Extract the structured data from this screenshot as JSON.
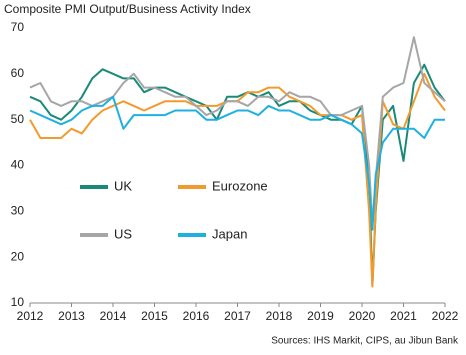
{
  "chart_data": {
    "type": "line",
    "title": "Composite PMI Output/Business Activity Index",
    "source": "Sources: IHS Markit, CIPS, au Jibun Bank",
    "x": [
      2012.0,
      2012.25,
      2012.5,
      2012.75,
      2013.0,
      2013.25,
      2013.5,
      2013.75,
      2014.0,
      2014.25,
      2014.5,
      2014.75,
      2015.0,
      2015.25,
      2015.5,
      2015.75,
      2016.0,
      2016.25,
      2016.5,
      2016.75,
      2017.0,
      2017.25,
      2017.5,
      2017.75,
      2018.0,
      2018.25,
      2018.5,
      2018.75,
      2019.0,
      2019.25,
      2019.5,
      2019.75,
      2020.0,
      2020.17,
      2020.25,
      2020.33,
      2020.5,
      2020.75,
      2021.0,
      2021.25,
      2021.5,
      2021.75,
      2022.0
    ],
    "series": [
      {
        "name": "UK",
        "color": "#1a8a78",
        "values": [
          55,
          54,
          51,
          50,
          52,
          55,
          59,
          61,
          60,
          59,
          59,
          56,
          57,
          57,
          56,
          55,
          54,
          53,
          50,
          55,
          55,
          56,
          55,
          56,
          53,
          54,
          54,
          52,
          51,
          50,
          50,
          49,
          53,
          36,
          13.8,
          30,
          50,
          53,
          41,
          58,
          62,
          57,
          54
        ]
      },
      {
        "name": "Eurozone",
        "color": "#f29a2e",
        "values": [
          50,
          46,
          46,
          46,
          48,
          47,
          50,
          52,
          53,
          54,
          53,
          52,
          53,
          54,
          54,
          54,
          53,
          53,
          53,
          54,
          54,
          56,
          56,
          57,
          57,
          55,
          54,
          53,
          51,
          51,
          51,
          50,
          51,
          30,
          13.6,
          31,
          54,
          49,
          48,
          54,
          60,
          55,
          52
        ]
      },
      {
        "name": "US",
        "color": "#a6a6a6",
        "values": [
          57,
          58,
          54,
          53,
          54,
          54,
          53,
          54,
          55,
          58,
          60,
          57,
          57,
          56,
          55,
          55,
          53,
          51,
          52,
          54,
          54,
          53,
          55,
          55,
          54,
          56,
          55,
          55,
          54,
          51,
          51,
          52,
          53,
          40,
          27,
          37,
          55,
          57,
          58,
          68,
          58,
          56,
          54
        ]
      },
      {
        "name": "Japan",
        "color": "#1fb0e0",
        "values": [
          52,
          51,
          50,
          49,
          50,
          52,
          53,
          53,
          55,
          48,
          51,
          51,
          51,
          51,
          52,
          52,
          52,
          50,
          50,
          51,
          52,
          52,
          51,
          53,
          52,
          52,
          51,
          50,
          50,
          51,
          50,
          49,
          47,
          36,
          26,
          38,
          45,
          48,
          48,
          48,
          46,
          50,
          50
        ]
      }
    ],
    "xlim": [
      2012,
      2022
    ],
    "xticks": [
      2012,
      2013,
      2014,
      2015,
      2016,
      2017,
      2018,
      2019,
      2020,
      2021,
      2022
    ],
    "ylim": [
      10,
      70
    ],
    "yticks": [
      10,
      20,
      30,
      40,
      50,
      60,
      70
    ]
  }
}
